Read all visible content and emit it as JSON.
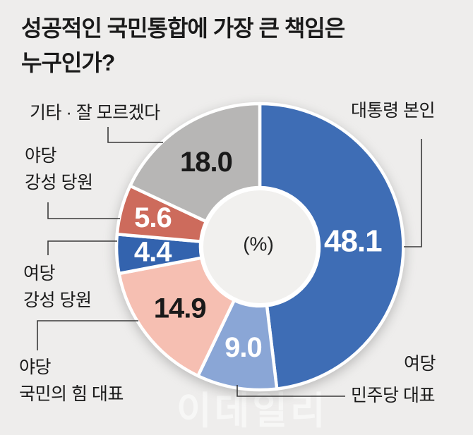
{
  "title": {
    "line1": "성공적인 국민통합에 가장 큰 책임은",
    "line2": "누구인가?"
  },
  "center_label": "(%)",
  "watermark": "이데일리",
  "callouts": {
    "etc": {
      "line1": "기타 · 잘 모르겠다"
    },
    "opposition_hardline": {
      "line1": "야당",
      "line2": "강성 당원"
    },
    "ruling_hardline": {
      "line1": "여당",
      "line2": "강성 당원"
    },
    "opposition_leader": {
      "line1": "야당",
      "line2": "국민의 힘 대표"
    },
    "president": {
      "line1": "대통령 본인"
    },
    "ruling_leader": {
      "line1": "여당",
      "line2": "민주당 대표"
    }
  },
  "chart_data": {
    "type": "pie",
    "donut": true,
    "title": "성공적인 국민통합에 가장 큰 책임은 누구인가?",
    "unit": "%",
    "start_angle_deg": 0,
    "direction": "clockwise",
    "legend_position": "callout-labels",
    "categories": [
      "대통령 본인",
      "여당 민주당 대표",
      "야당 국민의 힘 대표",
      "여당 강성 당원",
      "야당 강성 당원",
      "기타 · 잘 모르겠다"
    ],
    "values": [
      48.1,
      9.0,
      14.9,
      4.4,
      5.6,
      18.0
    ],
    "colors": [
      "#3e6db5",
      "#8aa6d6",
      "#f6bfb2",
      "#3363ae",
      "#cd6b5c",
      "#b7b6b5"
    ],
    "value_label_colors": [
      "#ffffff",
      "#ffffff",
      "#1a1a1a",
      "#ffffff",
      "#ffffff",
      "#1a1a1a"
    ],
    "background_color": "#eeedec",
    "center_circle_color": "#f1f0ee"
  }
}
